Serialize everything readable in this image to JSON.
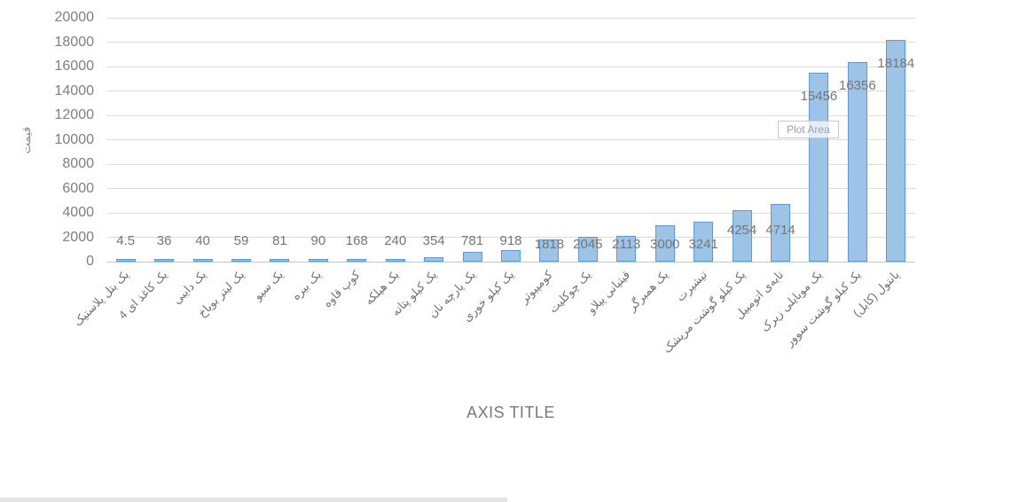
{
  "chart": {
    "plot_area_tooltip": "Plot Area",
    "x_axis_title": "AXIS TITLE",
    "y_axis_title": "قیمت",
    "colors": {
      "bar_fill": "#9DC3E6",
      "bar_border": "#5B9BD5",
      "gridline": "#DCDCDC",
      "axis_line": "#C6C6C6",
      "tick_text": "#7F7F7F",
      "data_label_text": "#767676",
      "category_text": "#6F6F6F"
    }
  },
  "chart_data": {
    "type": "bar",
    "title": "",
    "xlabel": "AXIS TITLE",
    "ylabel": "قیمت",
    "ylim": [
      0,
      20000
    ],
    "ytick_step": 2000,
    "yticks": [
      0,
      2000,
      4000,
      6000,
      8000,
      10000,
      12000,
      14000,
      16000,
      18000,
      20000
    ],
    "grid": true,
    "legend": false,
    "categories": [
      "یک بتل پلاستیک",
      "یک کاغذ ای 4",
      "یک دایبی",
      "یک لیتر بویاخ",
      "یک سیو",
      "یک بیره",
      "کوپ قاوه",
      "یک هیلکه",
      "یک کیلو پتاته",
      "یک پارچه نان",
      "یک کیلو خوری",
      "کومپیوتر",
      "یک چوکلیت",
      "قیتیانی پیلاو",
      "یک همبرگر",
      "تیشیرت",
      "یک کیلو گوشت مریشک",
      "تایه‌ی اتومبیل",
      "یک موبایلی زیرک",
      "یک کیلو گوشت سوور",
      "پانتول (کابل)"
    ],
    "values": [
      4.5,
      36,
      40,
      59,
      81,
      90,
      168,
      240,
      354,
      781,
      918,
      1818,
      2045,
      2113,
      3000,
      3241,
      4254,
      4714,
      15456,
      16356,
      18184
    ],
    "data_labels": [
      "4.5",
      "36",
      "40",
      "59",
      "81",
      "90",
      "168",
      "240",
      "354",
      "781",
      "918",
      "1818",
      "2045",
      "2113",
      "3000",
      "3241",
      "4254",
      "4714",
      "15456",
      "16356",
      "18184"
    ]
  }
}
